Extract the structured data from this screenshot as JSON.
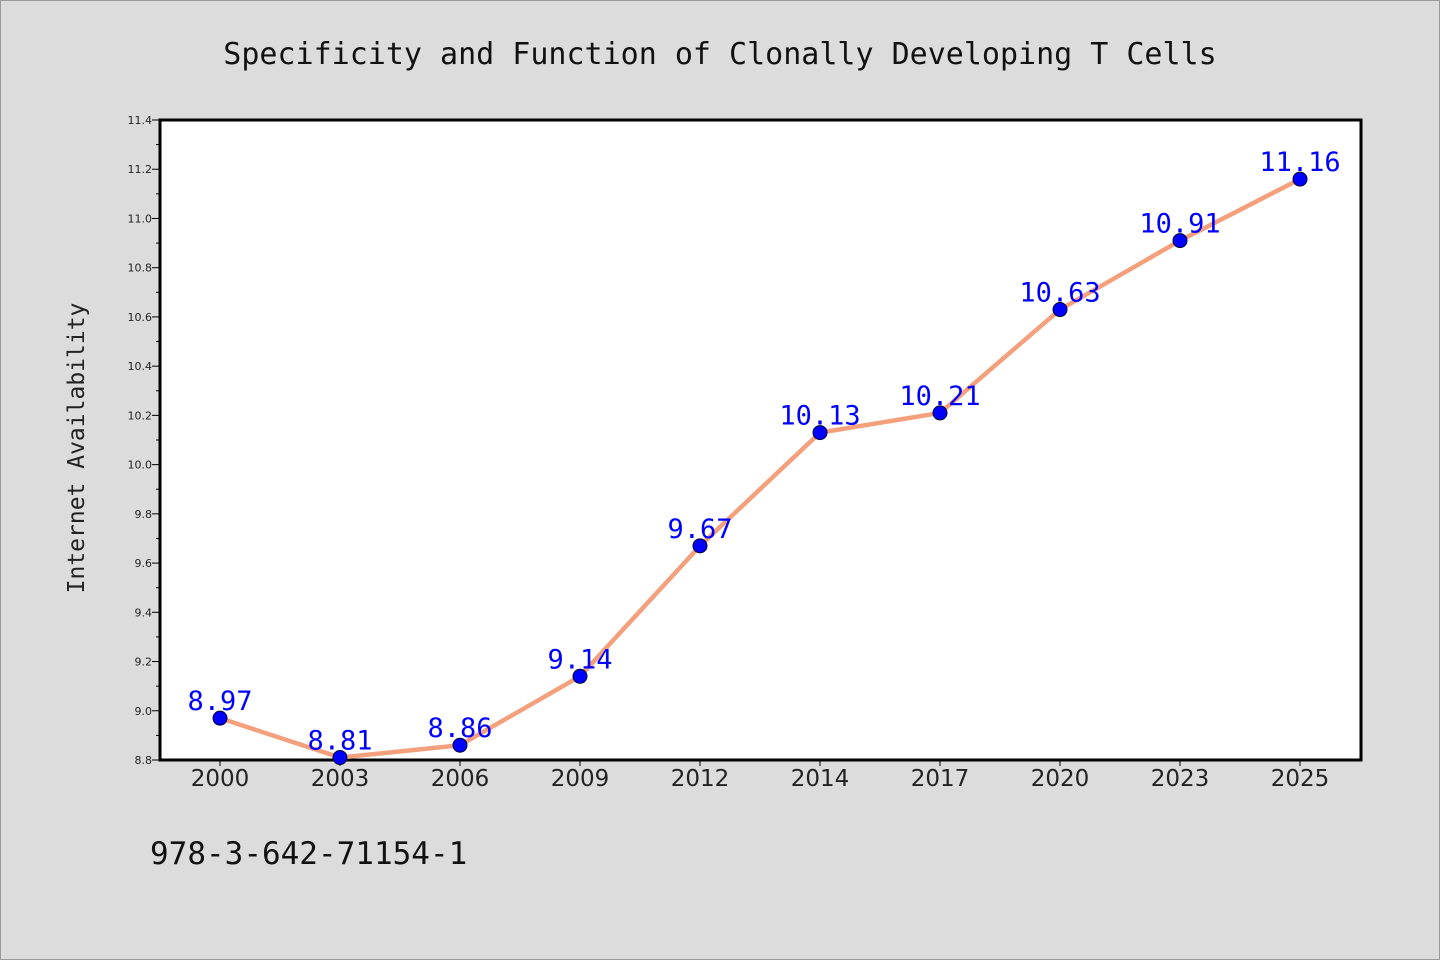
{
  "chart_data": {
    "type": "line",
    "title": "Specificity and Function of Clonally Developing T Cells",
    "xlabel": "",
    "ylabel": "Internet Availability",
    "categories": [
      "2000",
      "2003",
      "2006",
      "2009",
      "2012",
      "2014",
      "2017",
      "2020",
      "2023",
      "2025"
    ],
    "series": [
      {
        "values": [
          8.97,
          8.81,
          8.86,
          9.14,
          9.67,
          10.13,
          10.21,
          10.63,
          10.91,
          11.16
        ],
        "data_labels": [
          "8.97",
          "8.81",
          "8.86",
          "9.14",
          "9.67",
          "10.13",
          "10.21",
          "10.63",
          "10.91",
          "11.16"
        ],
        "line_color": "#f4a07c",
        "marker_color": "#0000ff"
      }
    ],
    "ylim": [
      8.8,
      11.4
    ],
    "yticks": [
      8.8,
      9.0,
      9.2,
      9.4,
      9.6,
      9.8,
      10.0,
      10.2,
      10.4,
      10.6,
      10.8,
      11.0,
      11.2,
      11.4
    ],
    "ytick_labels": [
      "8.8",
      "9.0",
      "9.2",
      "9.4",
      "9.6",
      "9.8",
      "10.0",
      "10.2",
      "10.4",
      "10.6",
      "10.8",
      "11.0",
      "11.2",
      "11.4"
    ],
    "grid": false,
    "legend": "none"
  },
  "footnote": "978-3-642-71154-1",
  "colors": {
    "background": "#dcdcdc",
    "plot_background": "#ffffff",
    "line": "#f4a07c",
    "marker": "#0000ff",
    "data_label": "#0000ff"
  }
}
